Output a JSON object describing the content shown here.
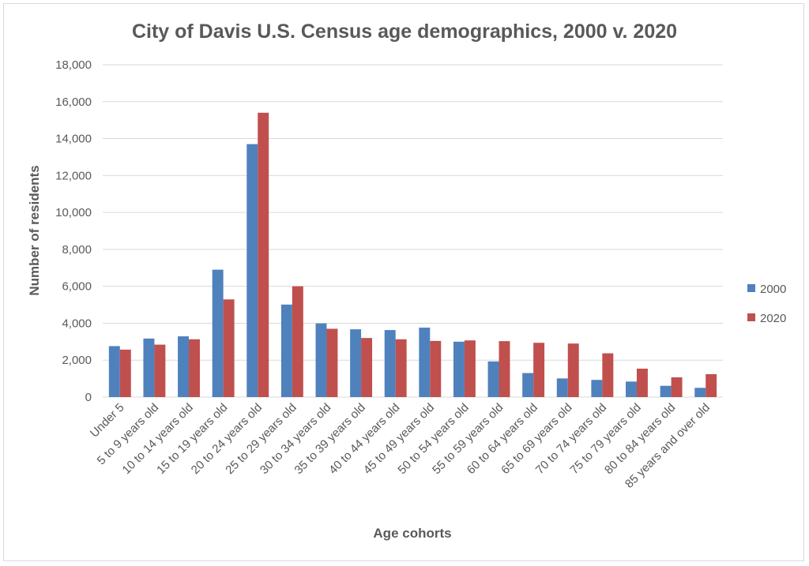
{
  "chart_data": {
    "type": "bar",
    "title": "City of Davis U.S. Census age demographics, 2000 v. 2020",
    "xlabel": "Age cohorts",
    "ylabel": "Number of residents",
    "ylim": [
      0,
      18000
    ],
    "yticks": [
      0,
      2000,
      4000,
      6000,
      8000,
      10000,
      12000,
      14000,
      16000,
      18000
    ],
    "ytick_labels": [
      "0",
      "2,000",
      "4,000",
      "6,000",
      "8,000",
      "10,000",
      "12,000",
      "14,000",
      "16,000",
      "18,000"
    ],
    "grid": true,
    "legend_position": "right",
    "categories": [
      "Under 5",
      "5 to 9 years old",
      "10 to 14 years old",
      "15 to 19 years old",
      "20 to 24 years old",
      "25 to 29 years old",
      "30 to 34 years old",
      "35 to 39 years old",
      "40 to 44 years old",
      "45 to 49 years old",
      "50 to 54 years old",
      "55 to 59 years old",
      "60 to 64 years old",
      "65 to 69 years old",
      "70 to 74 years old",
      "75 to 79 years old",
      "80 to 84 years old",
      "85 years and over old"
    ],
    "series": [
      {
        "name": "2000",
        "color": "#4f81bd",
        "values": [
          2760,
          3170,
          3290,
          6900,
          13700,
          5010,
          3990,
          3670,
          3630,
          3760,
          3000,
          1930,
          1300,
          1010,
          930,
          840,
          610,
          500
        ]
      },
      {
        "name": "2020",
        "color": "#c0504d",
        "values": [
          2570,
          2840,
          3130,
          5290,
          15400,
          6000,
          3700,
          3200,
          3130,
          3040,
          3070,
          3030,
          2940,
          2900,
          2370,
          1540,
          1070,
          1240
        ]
      }
    ]
  }
}
